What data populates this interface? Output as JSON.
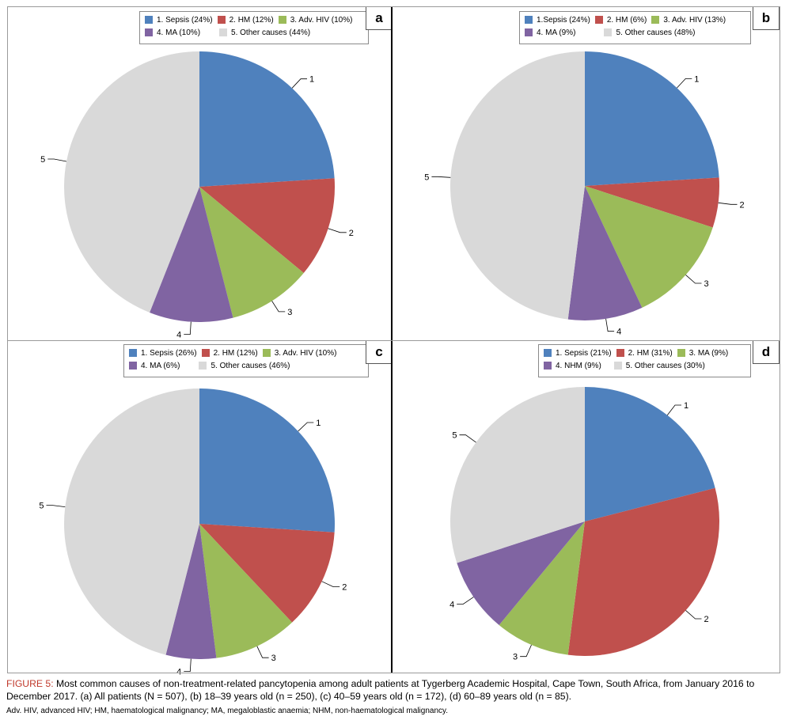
{
  "colors": {
    "c1": "#4f81bd",
    "c2": "#c0504d",
    "c3": "#9bbb59",
    "c4": "#8064a2",
    "c5": "#d9d9d9"
  },
  "chart_data": [
    {
      "type": "pie",
      "panel": "a",
      "legend": [
        "1. Sepsis (24%)",
        "2. HM (12%)",
        "3. Adv. HIV (10%)",
        "4. MA (10%)",
        "5. Other causes (44%)"
      ],
      "slice_labels": [
        "1",
        "2",
        "3",
        "4",
        "5"
      ],
      "values": [
        24,
        12,
        10,
        10,
        44
      ]
    },
    {
      "type": "pie",
      "panel": "b",
      "legend": [
        "1.Sepsis (24%)",
        "2. HM (6%)",
        "3. Adv. HIV (13%)",
        "4. MA (9%)",
        "5. Other causes (48%)"
      ],
      "slice_labels": [
        "1",
        "2",
        "3",
        "4",
        "5"
      ],
      "values": [
        24,
        6,
        13,
        9,
        48
      ]
    },
    {
      "type": "pie",
      "panel": "c",
      "legend": [
        "1. Sepsis (26%)",
        "2. HM (12%)",
        "3. Adv. HIV (10%)",
        "4. MA (6%)",
        "5. Other causes (46%)"
      ],
      "slice_labels": [
        "1",
        "2",
        "3",
        "4",
        "5"
      ],
      "values": [
        26,
        12,
        10,
        6,
        46
      ]
    },
    {
      "type": "pie",
      "panel": "d",
      "legend": [
        "1. Sepsis (21%)",
        "2. HM (31%)",
        "3. MA (9%)",
        "4. NHM (9%)",
        "5. Other causes (30%)"
      ],
      "slice_labels": [
        "1",
        "2",
        "3",
        "4",
        "5"
      ],
      "values": [
        21,
        31,
        9,
        9,
        30
      ]
    }
  ],
  "caption": {
    "figure_label": "FIGURE 5:",
    "text": " Most common causes of non-treatment-related pancytopenia among adult patients at Tygerberg Academic Hospital, Cape Town, South Africa, from January 2016 to December 2017. (a) All patients (N = 507), (b) 18–39 years old (n = 250), (c) 40–59 years old (n = 172), (d) 60–89 years old (n = 85).",
    "abbreviations": "Adv. HIV, advanced HIV; HM, haematological malignancy; MA, megaloblastic anaemia; NHM, non-haematological malignancy."
  }
}
